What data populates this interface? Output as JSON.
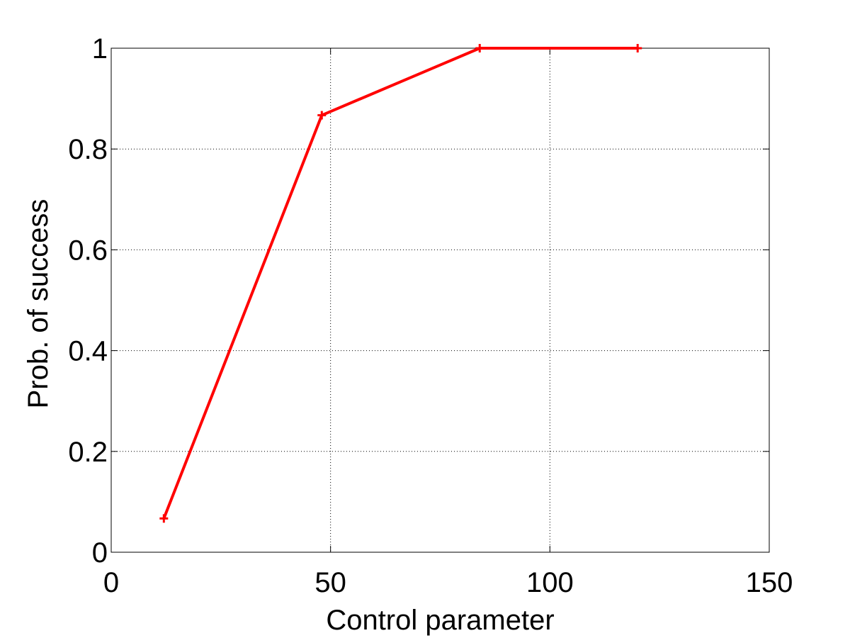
{
  "chart_data": {
    "type": "line",
    "title": "",
    "xlabel": "Control parameter",
    "ylabel": "Prob. of success",
    "xlim": [
      0,
      150
    ],
    "ylim": [
      0,
      1
    ],
    "x_ticks": [
      0,
      50,
      100,
      150
    ],
    "x_tick_labels": [
      "0",
      "50",
      "100",
      "150"
    ],
    "y_ticks": [
      0,
      0.2,
      0.4,
      0.6,
      0.8,
      1
    ],
    "y_tick_labels": [
      "0",
      "0.2",
      "0.4",
      "0.6",
      "0.8",
      "1"
    ],
    "grid": true,
    "grid_style": "dotted",
    "legend": "none",
    "series": [
      {
        "color": "#ff0000",
        "marker": "plus",
        "x": [
          12,
          48,
          84,
          120
        ],
        "y": [
          0.067,
          0.867,
          1.0,
          1.0
        ]
      }
    ]
  }
}
